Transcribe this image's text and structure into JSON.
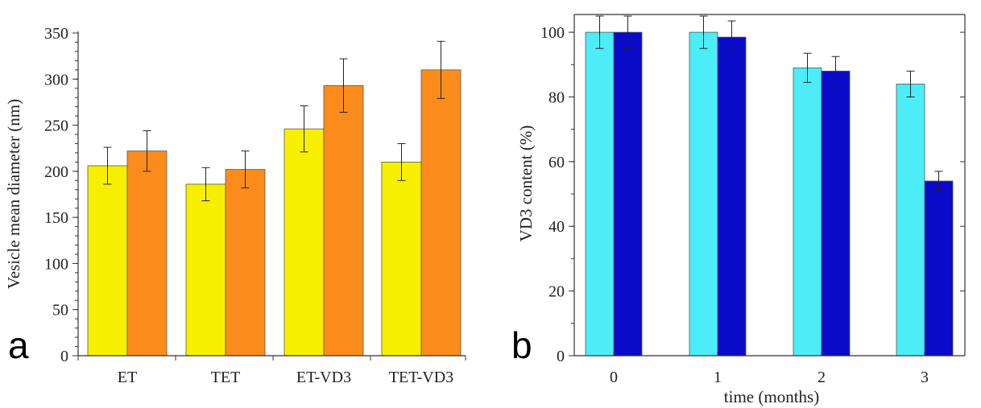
{
  "panels": [
    {
      "panel_label": "a",
      "chart_data": {
        "type": "bar",
        "categories": [
          "ET",
          "TET",
          "ET-VD3",
          "TET-VD3"
        ],
        "series": [
          {
            "values": [
              206,
              186,
              246,
              210
            ],
            "errors": [
              20,
              18,
              25,
              20
            ],
            "color": "#f7ef00"
          },
          {
            "values": [
              222,
              202,
              293,
              310
            ],
            "errors": [
              22,
              20,
              29,
              31
            ],
            "color": "#fb8c1c"
          }
        ],
        "title": "",
        "xlabel": "",
        "ylabel": "Vesicle mean diameter (nm)",
        "ylim": [
          0,
          350
        ],
        "yticks": [
          0,
          50,
          100,
          150,
          200,
          250,
          300,
          350
        ],
        "grid": false
      }
    },
    {
      "panel_label": "b",
      "chart_data": {
        "type": "bar",
        "categories": [
          "0",
          "1",
          "2",
          "3"
        ],
        "series": [
          {
            "values": [
              100,
              100,
              89,
              84
            ],
            "errors": [
              5,
              5,
              4.5,
              4
            ],
            "color": "#4dedf7"
          },
          {
            "values": [
              100,
              98.5,
              88,
              54
            ],
            "errors": [
              5,
              5,
              4.5,
              3
            ],
            "color": "#0a0ac8"
          }
        ],
        "title": "",
        "xlabel": "time (months)",
        "ylabel": "VD3  content (%)",
        "ylim": [
          0,
          105
        ],
        "yticks": [
          0,
          20,
          40,
          60,
          80,
          100
        ],
        "grid": false
      }
    }
  ]
}
